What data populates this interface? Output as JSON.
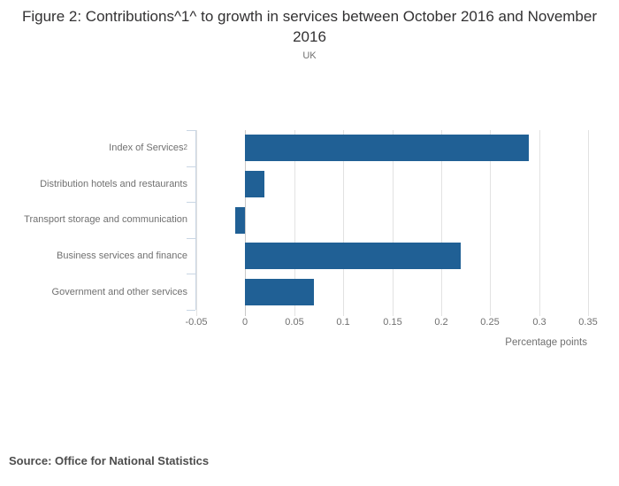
{
  "figure": {
    "title": "Figure 2: Contributions^1^ to growth in services between October 2016 and November 2016",
    "subtitle": "UK",
    "source": "Source: Office for National Statistics"
  },
  "chart_data": {
    "type": "bar",
    "orientation": "horizontal",
    "title": "Figure 2: Contributions^1^ to growth in services between October 2016 and November 2016",
    "subtitle": "UK",
    "categories": [
      "Index of Services",
      "Distribution hotels and restaurants",
      "Transport storage and communication",
      "Business services and finance",
      "Government and other services"
    ],
    "category_superscripts": [
      "2",
      "",
      "",
      "",
      ""
    ],
    "values": [
      0.29,
      0.02,
      -0.01,
      0.22,
      0.07
    ],
    "xlabel": "Percentage points",
    "ylabel": "",
    "xlim": [
      -0.05,
      0.35
    ],
    "xticks": [
      -0.05,
      0,
      0.05,
      0.1,
      0.15,
      0.2,
      0.25,
      0.3,
      0.35
    ],
    "xtick_labels": [
      "-0.05",
      "0",
      "0.05",
      "0.1",
      "0.15",
      "0.2",
      "0.25",
      "0.3",
      "0.35"
    ],
    "grid": true,
    "legend_position": "none",
    "bar_color": "#206095"
  },
  "colors": {
    "bar": "#206095",
    "title_text": "#323132",
    "muted_text": "#707070",
    "source_text": "#4d4d4d",
    "gridline": "#e2e2e2",
    "zero_line": "#c9c9c9",
    "axis": "#c9d6e4",
    "background": "#ffffff"
  }
}
